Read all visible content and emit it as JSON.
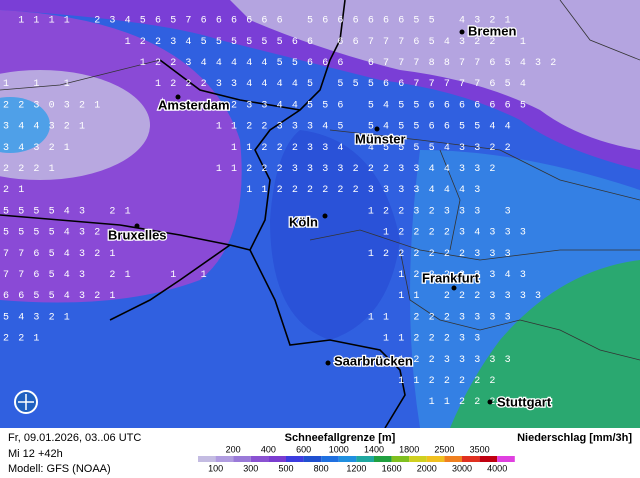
{
  "map": {
    "grid_rows": [
      " 1111 2345657666666 566666655 4321",
      "        1223455555566 66777654322 1",
      "         12234444455666 6777887765432",
      "1 1 1     12223344445 5556677777654",
      "2230321      1223344556 54556666665",
      "344321        112233345 5455665544",
      "34321          11222334 4555543322",
      "2221          1122233332223344332",
      "21              1122222233334443",
      "555543 21               12232333 3",
      "55554321                 1222234333",
      "77654321                1222222333",
      "776543 21  1 1            122223343",
      "66554321                  11 2223333",
      "54321                   11 2223333",
      "221                      1122233",
      "                          12233333",
      "                          1122222",
      "                            11222"
    ],
    "cities": [
      "Bremen",
      "Amsterdam",
      "Münster",
      "Köln",
      "Bruxelles",
      "Frankfurt",
      "Saarbrücken",
      "Stuttgart"
    ]
  },
  "footer": {
    "date": "Fr, 09.01.2026, 03..06 UTC",
    "run": "Mi 12 +42h",
    "model": "Modell: GFS (NOAA)"
  },
  "legend": {
    "title": "Schneefallgrenze [m]",
    "precip_title": "Niederschlag [mm/3h]",
    "ticks": [
      100,
      200,
      300,
      400,
      500,
      600,
      800,
      1000,
      1200,
      1400,
      1600,
      1800,
      2000,
      2500,
      3000,
      3500,
      4000
    ],
    "colors": [
      "#c4bce2",
      "#b09ce0",
      "#9a7ad8",
      "#8a52d2",
      "#7a3cd0",
      "#3c3ce0",
      "#2050d0",
      "#2070e0",
      "#2090e0",
      "#20a8a0",
      "#20a040",
      "#80c020",
      "#d0d020",
      "#f0c020",
      "#f08020",
      "#e03020",
      "#c00010",
      "#e040e0"
    ]
  }
}
